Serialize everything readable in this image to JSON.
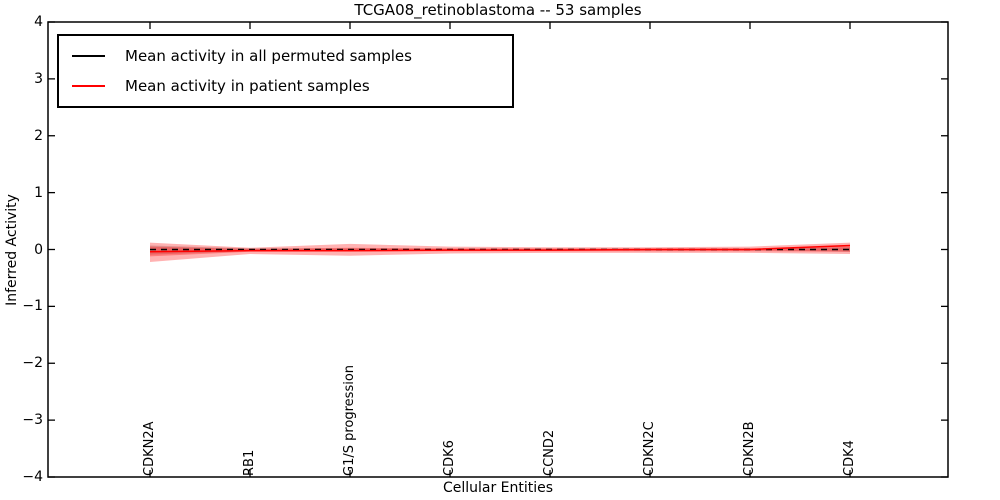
{
  "chart_data": {
    "type": "line",
    "title": "TCGA08_retinoblastoma -- 53 samples",
    "xlabel": "Cellular Entities",
    "ylabel": "Inferred Activity",
    "ylim": [
      -4,
      4
    ],
    "ytick_values": [
      -4,
      -3,
      -2,
      -1,
      0,
      1,
      2,
      3,
      4
    ],
    "ytick_labels": [
      "−4",
      "−3",
      "−2",
      "−1",
      "0",
      "1",
      "2",
      "3",
      "4"
    ],
    "grid": false,
    "categories": [
      "CDKN2A",
      "RB1",
      "G1/S progression",
      "CDK6",
      "CCND2",
      "CDKN2C",
      "CDKN2B",
      "CDK4"
    ],
    "legend": {
      "position": "upper left",
      "entries": [
        {
          "label": "Mean activity in all permuted samples",
          "color": "#000000"
        },
        {
          "label": "Mean activity in patient samples",
          "color": "#ff0000"
        }
      ]
    },
    "series": [
      {
        "name": "Mean activity in all permuted samples",
        "color": "#000000",
        "line_style": "dashed",
        "values": [
          0,
          0,
          0,
          0,
          0,
          0,
          0,
          0
        ]
      },
      {
        "name": "Mean activity in patient samples",
        "color": "#ff0000",
        "line_style": "solid",
        "values": [
          -0.04,
          -0.02,
          -0.02,
          -0.01,
          -0.01,
          0.0,
          0.0,
          0.07
        ]
      }
    ],
    "bands": [
      {
        "name": "permuted-std-band",
        "color": "#787878",
        "opacity": 0.35,
        "upper": [
          0.07,
          0.02,
          0.02,
          0.01,
          0.01,
          0.01,
          0.01,
          0.04
        ],
        "lower": [
          -0.09,
          -0.03,
          -0.02,
          -0.01,
          -0.01,
          -0.01,
          -0.01,
          -0.04
        ]
      },
      {
        "name": "patient-std-band-outer",
        "color": "#ff0000",
        "opacity": 0.3,
        "upper": [
          0.12,
          0.03,
          0.1,
          0.05,
          0.04,
          0.04,
          0.05,
          0.12
        ],
        "lower": [
          -0.22,
          -0.08,
          -0.11,
          -0.07,
          -0.06,
          -0.06,
          -0.06,
          -0.08
        ]
      },
      {
        "name": "patient-std-band-inner",
        "color": "#ff0000",
        "opacity": 0.3,
        "upper": [
          0.05,
          0.01,
          0.03,
          0.02,
          0.02,
          0.02,
          0.02,
          0.06
        ],
        "lower": [
          -0.12,
          -0.04,
          -0.04,
          -0.03,
          -0.03,
          -0.03,
          -0.03,
          -0.04
        ]
      }
    ],
    "colors": {
      "axis": "#000000",
      "background": "#ffffff",
      "patient_red": "#ff0000"
    }
  }
}
